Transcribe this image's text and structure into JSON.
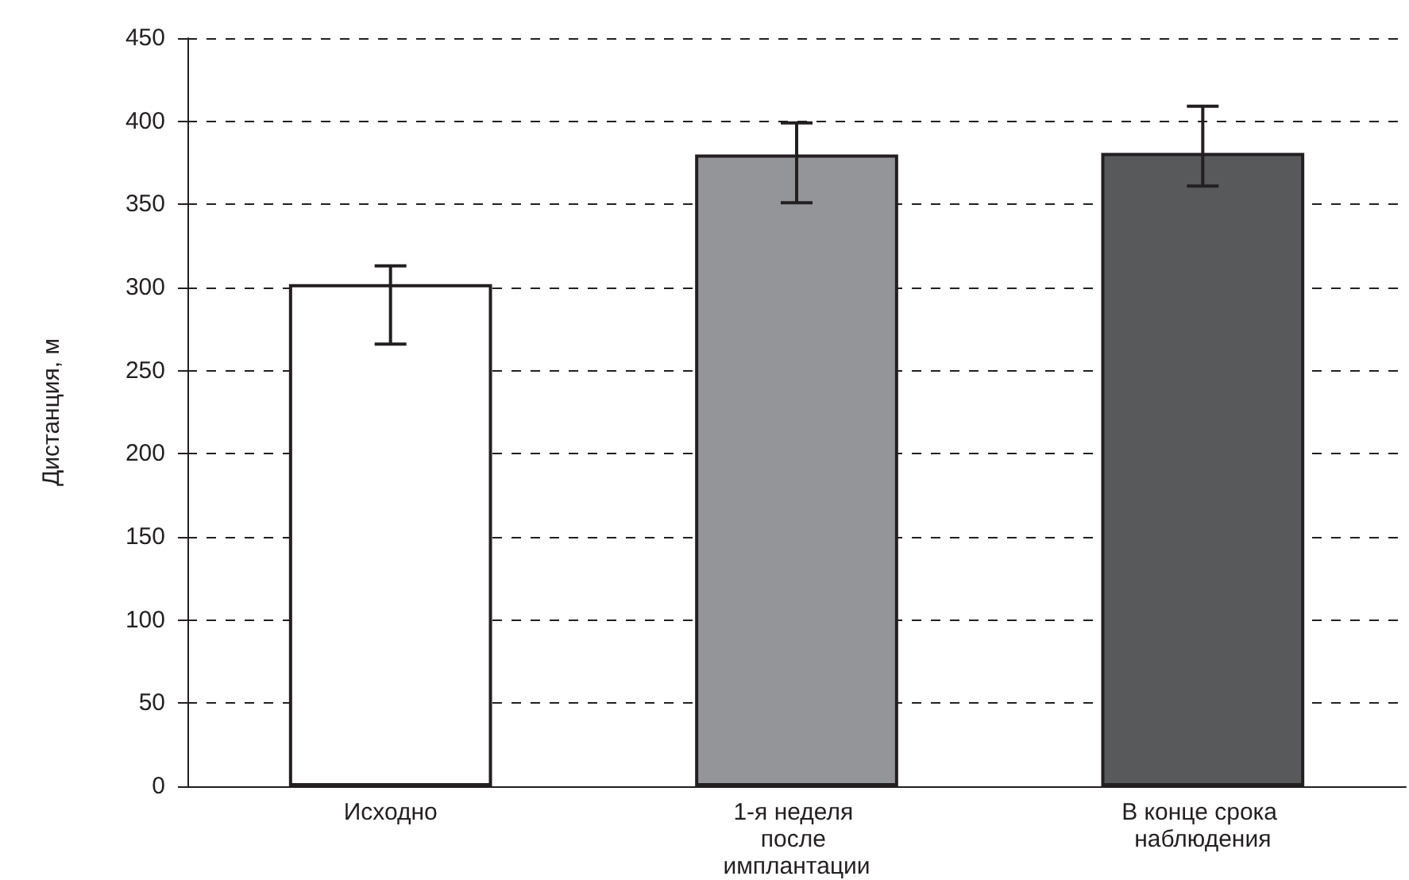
{
  "chart_data": {
    "type": "bar",
    "ylabel": "Дистанция, м",
    "categories": [
      "Исходно",
      "1-я неделя после имплантации",
      "В конце срока наблюдения"
    ],
    "values": [
      302,
      380,
      381
    ],
    "colors": [
      "#ffffff",
      "#939598",
      "#58595b"
    ],
    "errors": [
      [
        266,
        313
      ],
      [
        351,
        399
      ],
      [
        361,
        409
      ]
    ],
    "ylim": [
      0,
      450
    ],
    "yticks": [
      0,
      50,
      100,
      150,
      200,
      250,
      300,
      350,
      400,
      450
    ],
    "grid": "y",
    "line_style": "dashed"
  }
}
